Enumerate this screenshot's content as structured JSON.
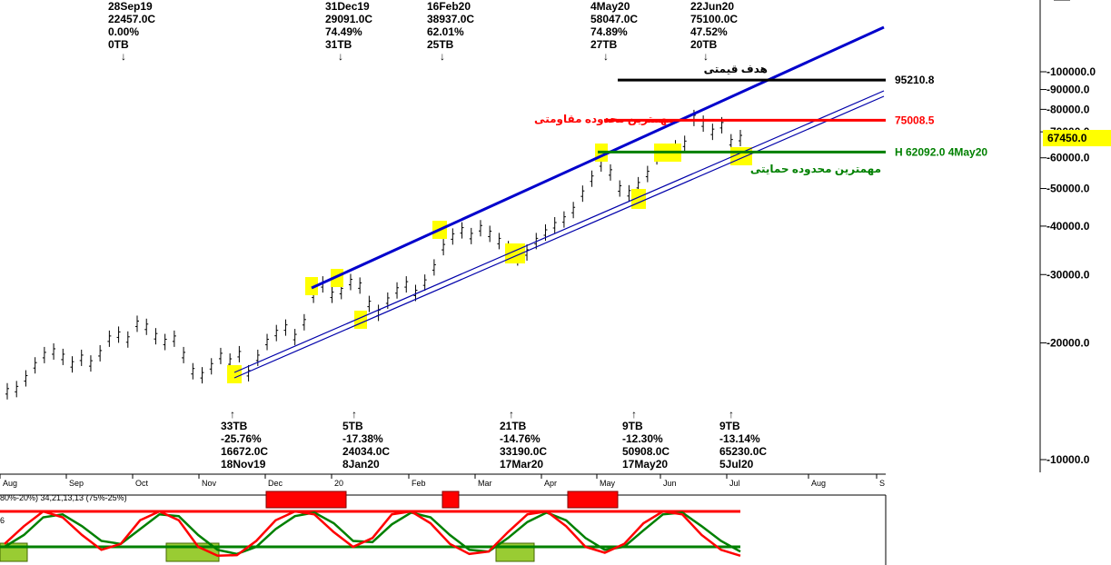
{
  "chart_data": {
    "type": "line",
    "scale": "log",
    "y_ticks": [
      "100000.0",
      "90000.0",
      "80000.0",
      "70000.0",
      "60000.0",
      "50000.0",
      "40000.0",
      "30000.0",
      "20000.0",
      "10000.0"
    ],
    "x_months": [
      "Aug",
      "Sep",
      "Oct",
      "Nov",
      "Dec",
      "20",
      "Feb",
      "Mar",
      "Apr",
      "May",
      "Jun",
      "Jul",
      "Aug",
      "S"
    ],
    "last_price": "67450.0",
    "levels": [
      {
        "name": "target",
        "value": 95210.8,
        "label": "95210.8",
        "title": "هدف قیمتی",
        "color": "#000000"
      },
      {
        "name": "resistance",
        "value": 75008.5,
        "label": "75008.5",
        "title": "مهمترین محدوده مقاومتی",
        "color": "#ff0000"
      },
      {
        "name": "support",
        "value": 62092.0,
        "label": "H 62092.0 4May20",
        "title": "مهمترین محدوده حمایتی",
        "color": "#008000"
      }
    ],
    "peaks": [
      {
        "lines": [
          "28Sep19",
          "22457.0C",
          "0.00%",
          "0TB"
        ]
      },
      {
        "lines": [
          "31Dec19",
          "29091.0C",
          "74.49%",
          "31TB"
        ]
      },
      {
        "lines": [
          "16Feb20",
          "38937.0C",
          "62.01%",
          "25TB"
        ]
      },
      {
        "lines": [
          "4May20",
          "58047.0C",
          "74.89%",
          "27TB"
        ]
      },
      {
        "lines": [
          "22Jun20",
          "75100.0C",
          "47.52%",
          "20TB"
        ]
      }
    ],
    "troughs": [
      {
        "lines": [
          "33TB",
          "-25.76%",
          "16672.0C",
          "18Nov19"
        ]
      },
      {
        "lines": [
          "5TB",
          "-17.38%",
          "24034.0C",
          "8Jan20"
        ]
      },
      {
        "lines": [
          "21TB",
          "-14.76%",
          "33190.0C",
          "17Mar20"
        ]
      },
      {
        "lines": [
          "9TB",
          "-12.30%",
          "50908.0C",
          "17May20"
        ]
      },
      {
        "lines": [
          "9TB",
          "-13.14%",
          "65230.0C",
          "5Jul20"
        ]
      }
    ],
    "price_series": [
      15000,
      15200,
      16200,
      17500,
      18600,
      19000,
      18400,
      17600,
      18300,
      17700,
      18800,
      20500,
      21000,
      20400,
      22400,
      22000,
      20800,
      20100,
      20500,
      18600,
      16900,
      16500,
      17400,
      18500,
      17900,
      18700,
      16700,
      18300,
      20100,
      21200,
      21900,
      20700,
      22600,
      26600,
      28300,
      26600,
      27200,
      28700,
      28100,
      25200,
      23900,
      25700,
      27300,
      28300,
      26900,
      28600,
      31300,
      35300,
      37600,
      39000,
      37700,
      39500,
      38200,
      36600,
      34900,
      33200,
      34200,
      36600,
      38500,
      40200,
      41600,
      44000,
      48500,
      53000,
      58000,
      55000,
      50000,
      48600,
      51000,
      54500,
      60500,
      62000,
      63500,
      65200,
      76000,
      73500,
      70000,
      72800,
      65800,
      67450
    ],
    "oscillator": {
      "label": "80%-20%) 34,21,13,13 (75%-25%)",
      "scale_mark": "6",
      "upper_band": 80,
      "lower_band": 20,
      "fast": [
        25,
        55,
        80,
        70,
        40,
        15,
        25,
        65,
        80,
        65,
        20,
        5,
        6,
        30,
        65,
        80,
        75,
        45,
        20,
        35,
        75,
        80,
        60,
        25,
        8,
        12,
        45,
        75,
        80,
        55,
        20,
        10,
        25,
        60,
        80,
        75,
        40,
        15,
        5
      ],
      "slow": [
        20,
        40,
        70,
        75,
        55,
        30,
        25,
        50,
        75,
        72,
        40,
        15,
        8,
        20,
        50,
        72,
        78,
        60,
        30,
        28,
        58,
        78,
        70,
        40,
        15,
        12,
        35,
        62,
        78,
        65,
        35,
        15,
        20,
        48,
        75,
        78,
        55,
        30,
        12
      ]
    }
  }
}
